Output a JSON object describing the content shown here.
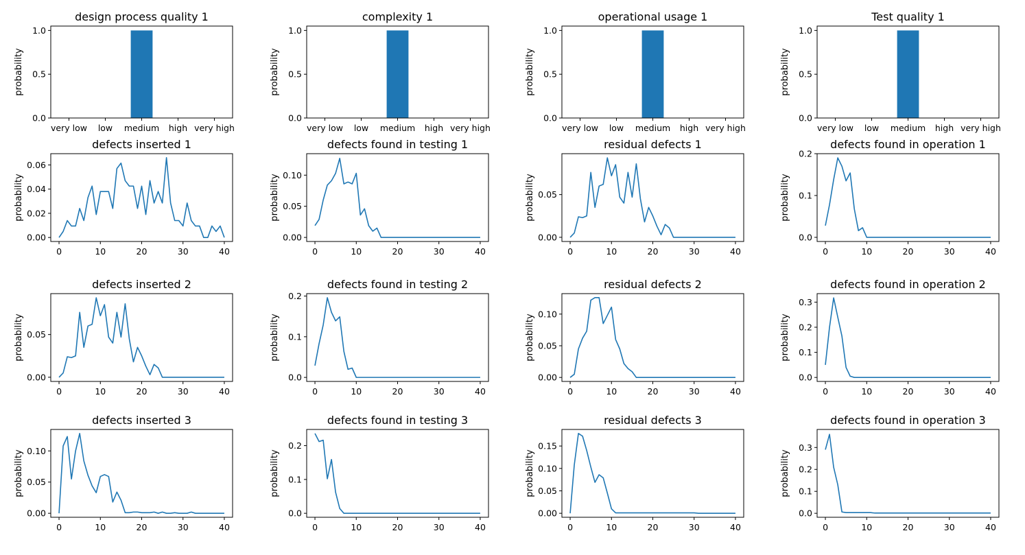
{
  "chart_data": [
    {
      "type": "bar",
      "title": "design process quality 1",
      "ylabel": "probability",
      "categories": [
        "very low",
        "low",
        "medium",
        "high",
        "very high"
      ],
      "values": [
        0,
        0,
        1,
        0,
        0
      ],
      "ylim": [
        0,
        1.05
      ],
      "yticks": [
        0.0,
        0.5,
        1.0
      ],
      "ytick_labels": [
        "0.0",
        "0.5",
        "1.0"
      ]
    },
    {
      "type": "bar",
      "title": "complexity 1",
      "ylabel": "probability",
      "categories": [
        "very low",
        "low",
        "medium",
        "high",
        "very high"
      ],
      "values": [
        0,
        0,
        1,
        0,
        0
      ],
      "ylim": [
        0,
        1.05
      ],
      "yticks": [
        0.0,
        0.5,
        1.0
      ],
      "ytick_labels": [
        "0.0",
        "0.5",
        "1.0"
      ]
    },
    {
      "type": "bar",
      "title": "operational usage 1",
      "ylabel": "probability",
      "categories": [
        "very low",
        "low",
        "medium",
        "high",
        "very high"
      ],
      "values": [
        0,
        0,
        1,
        0,
        0
      ],
      "ylim": [
        0,
        1.05
      ],
      "yticks": [
        0.0,
        0.5,
        1.0
      ],
      "ytick_labels": [
        "0.0",
        "0.5",
        "1.0"
      ]
    },
    {
      "type": "bar",
      "title": "Test quality 1",
      "ylabel": "probability",
      "categories": [
        "very low",
        "low",
        "medium",
        "high",
        "very high"
      ],
      "values": [
        0,
        0,
        1,
        0,
        0
      ],
      "ylim": [
        0,
        1.05
      ],
      "yticks": [
        0.0,
        0.5,
        1.0
      ],
      "ytick_labels": [
        "0.0",
        "0.5",
        "1.0"
      ]
    },
    {
      "type": "line",
      "title": "defects inserted 1",
      "ylabel": "probability",
      "x_range": [
        0,
        40
      ],
      "xticks": [
        0,
        10,
        20,
        30,
        40
      ],
      "ylim": [
        -0.0033,
        0.0693
      ],
      "yticks": [
        0,
        0.02,
        0.04,
        0.06
      ],
      "ytick_labels": [
        "0.00",
        "0.02",
        "0.04",
        "0.06"
      ],
      "values": [
        0,
        0.005,
        0.014,
        0.0095,
        0.0095,
        0.024,
        0.014,
        0.033,
        0.0425,
        0.019,
        0.038,
        0.038,
        0.038,
        0.024,
        0.057,
        0.0615,
        0.047,
        0.0425,
        0.0425,
        0.024,
        0.0425,
        0.019,
        0.047,
        0.0285,
        0.038,
        0.0285,
        0.066,
        0.0285,
        0.014,
        0.014,
        0.0095,
        0.0285,
        0.014,
        0.0095,
        0.0095,
        0,
        0,
        0.0095,
        0.005,
        0.0095,
        0
      ]
    },
    {
      "type": "line",
      "title": "defects found in testing 1",
      "ylabel": "probability",
      "x_range": [
        0,
        40
      ],
      "xticks": [
        0,
        10,
        20,
        30,
        40
      ],
      "ylim": [
        -0.0065,
        0.1345
      ],
      "yticks": [
        0,
        0.05,
        0.1
      ],
      "ytick_labels": [
        "0.00",
        "0.05",
        "0.10"
      ],
      "values": [
        0.019,
        0.029,
        0.06,
        0.084,
        0.091,
        0.103,
        0.127,
        0.086,
        0.089,
        0.086,
        0.103,
        0.036,
        0.046,
        0.019,
        0.01,
        0.015,
        0,
        0,
        0,
        0,
        0,
        0,
        0,
        0,
        0,
        0,
        0,
        0,
        0,
        0,
        0,
        0,
        0,
        0,
        0,
        0,
        0,
        0,
        0,
        0,
        0
      ]
    },
    {
      "type": "line",
      "title": "residual defects 1",
      "ylabel": "probability",
      "x_range": [
        0,
        40
      ],
      "xticks": [
        0,
        10,
        20,
        30,
        40
      ],
      "ylim": [
        -0.0049,
        0.0979
      ],
      "yticks": [
        0,
        0.05
      ],
      "ytick_labels": [
        "0.00",
        "0.05"
      ],
      "values": [
        0,
        0.005,
        0.024,
        0.023,
        0.025,
        0.076,
        0.035,
        0.06,
        0.062,
        0.093,
        0.072,
        0.085,
        0.047,
        0.04,
        0.076,
        0.047,
        0.086,
        0.045,
        0.018,
        0.035,
        0.025,
        0.013,
        0.003,
        0.015,
        0.011,
        0,
        0,
        0,
        0,
        0,
        0,
        0,
        0,
        0,
        0,
        0,
        0,
        0,
        0,
        0,
        0
      ]
    },
    {
      "type": "line",
      "title": "defects found in operation 1",
      "ylabel": "probability",
      "x_range": [
        0,
        40
      ],
      "xticks": [
        0,
        10,
        20,
        30,
        40
      ],
      "ylim": [
        -0.0099,
        0.2
      ],
      "yticks": [
        0,
        0.1,
        0.2
      ],
      "ytick_labels": [
        "0.0",
        "0.1",
        "0.2"
      ],
      "values": [
        0.028,
        0.078,
        0.138,
        0.19,
        0.17,
        0.135,
        0.154,
        0.068,
        0.016,
        0.023,
        0,
        0,
        0,
        0,
        0,
        0,
        0,
        0,
        0,
        0,
        0,
        0,
        0,
        0,
        0,
        0,
        0,
        0,
        0,
        0,
        0,
        0,
        0,
        0,
        0,
        0,
        0,
        0,
        0,
        0,
        0
      ]
    },
    {
      "type": "line",
      "title": "defects inserted 2",
      "ylabel": "probability",
      "x_range": [
        0,
        40
      ],
      "xticks": [
        0,
        10,
        20,
        30,
        40
      ],
      "ylim": [
        -0.0049,
        0.0979
      ],
      "yticks": [
        0,
        0.05
      ],
      "ytick_labels": [
        "0.00",
        "0.05"
      ],
      "values": [
        0,
        0.005,
        0.024,
        0.023,
        0.025,
        0.076,
        0.035,
        0.06,
        0.062,
        0.093,
        0.072,
        0.085,
        0.047,
        0.04,
        0.076,
        0.047,
        0.086,
        0.045,
        0.018,
        0.035,
        0.025,
        0.013,
        0.003,
        0.015,
        0.011,
        0,
        0,
        0,
        0,
        0,
        0,
        0,
        0,
        0,
        0,
        0,
        0,
        0,
        0,
        0,
        0
      ]
    },
    {
      "type": "line",
      "title": "defects found in testing 2",
      "ylabel": "probability",
      "x_range": [
        0,
        40
      ],
      "xticks": [
        0,
        10,
        20,
        30,
        40
      ],
      "ylim": [
        -0.0099,
        0.206
      ],
      "yticks": [
        0,
        0.1,
        0.2
      ],
      "ytick_labels": [
        "0.0",
        "0.1",
        "0.2"
      ],
      "values": [
        0.029,
        0.083,
        0.129,
        0.196,
        0.16,
        0.139,
        0.149,
        0.064,
        0.02,
        0.023,
        0,
        0,
        0,
        0,
        0,
        0,
        0,
        0,
        0,
        0,
        0,
        0,
        0,
        0,
        0,
        0,
        0,
        0,
        0,
        0,
        0,
        0,
        0,
        0,
        0,
        0,
        0,
        0,
        0,
        0,
        0
      ]
    },
    {
      "type": "line",
      "title": "residual defects 2",
      "ylabel": "probability",
      "x_range": [
        0,
        40
      ],
      "xticks": [
        0,
        10,
        20,
        30,
        40
      ],
      "ylim": [
        -0.0063,
        0.1323
      ],
      "yticks": [
        0,
        0.05,
        0.1
      ],
      "ytick_labels": [
        "0.00",
        "0.05",
        "0.10"
      ],
      "values": [
        0,
        0.005,
        0.045,
        0.062,
        0.073,
        0.122,
        0.126,
        0.126,
        0.085,
        0.098,
        0.111,
        0.06,
        0.045,
        0.022,
        0.014,
        0.009,
        0,
        0,
        0,
        0,
        0,
        0,
        0,
        0,
        0,
        0,
        0,
        0,
        0,
        0,
        0,
        0,
        0,
        0,
        0,
        0,
        0,
        0,
        0,
        0,
        0
      ]
    },
    {
      "type": "line",
      "title": "defects found in operation 2",
      "ylabel": "probability",
      "x_range": [
        0,
        40
      ],
      "xticks": [
        0,
        10,
        20,
        30,
        40
      ],
      "ylim": [
        -0.0159,
        0.3339
      ],
      "yticks": [
        0,
        0.1,
        0.2,
        0.3
      ],
      "ytick_labels": [
        "0.0",
        "0.1",
        "0.2",
        "0.3"
      ],
      "values": [
        0.05,
        0.2,
        0.317,
        0.24,
        0.165,
        0.04,
        0.005,
        0,
        0,
        0,
        0,
        0,
        0,
        0,
        0,
        0,
        0,
        0,
        0,
        0,
        0,
        0,
        0,
        0,
        0,
        0,
        0,
        0,
        0,
        0,
        0,
        0,
        0,
        0,
        0,
        0,
        0,
        0,
        0,
        0,
        0
      ]
    },
    {
      "type": "line",
      "title": "defects inserted 3",
      "ylabel": "probability",
      "x_range": [
        0,
        40
      ],
      "xticks": [
        0,
        10,
        20,
        30,
        40
      ],
      "ylim": [
        -0.0064,
        0.1344
      ],
      "yticks": [
        0,
        0.05,
        0.1
      ],
      "ytick_labels": [
        "0.00",
        "0.05",
        "0.10"
      ],
      "values": [
        0,
        0.108,
        0.123,
        0.055,
        0.1,
        0.128,
        0.084,
        0.061,
        0.044,
        0.033,
        0.059,
        0.062,
        0.059,
        0.018,
        0.034,
        0.021,
        0.001,
        0.001,
        0.002,
        0.002,
        0.001,
        0.001,
        0.001,
        0.002,
        0.0,
        0.002,
        0,
        0,
        0.001,
        0,
        0,
        0,
        0.002,
        0,
        0,
        0,
        0,
        0,
        0,
        0,
        0
      ]
    },
    {
      "type": "line",
      "title": "defects found in testing 3",
      "ylabel": "probability",
      "x_range": [
        0,
        40
      ],
      "xticks": [
        0,
        10,
        20,
        30,
        40
      ],
      "ylim": [
        -0.0118,
        0.2478
      ],
      "yticks": [
        0,
        0.1,
        0.2
      ],
      "ytick_labels": [
        "0.0",
        "0.1",
        "0.2"
      ],
      "values": [
        0.236,
        0.212,
        0.216,
        0.102,
        0.159,
        0.062,
        0.014,
        0,
        0,
        0,
        0,
        0,
        0,
        0,
        0,
        0,
        0,
        0,
        0,
        0,
        0,
        0,
        0,
        0,
        0,
        0,
        0,
        0,
        0,
        0,
        0,
        0,
        0,
        0,
        0,
        0,
        0,
        0,
        0,
        0,
        0
      ]
    },
    {
      "type": "line",
      "title": "residual defects 3",
      "ylabel": "probability",
      "x_range": [
        0,
        40
      ],
      "xticks": [
        0,
        10,
        20,
        30,
        40
      ],
      "ylim": [
        -0.0089,
        0.1869
      ],
      "yticks": [
        0,
        0.05,
        0.1,
        0.15
      ],
      "ytick_labels": [
        "0.00",
        "0.05",
        "0.10",
        "0.15"
      ],
      "values": [
        0,
        0.108,
        0.178,
        0.172,
        0.14,
        0.103,
        0.069,
        0.086,
        0.079,
        0.045,
        0.01,
        0.001,
        0.001,
        0.001,
        0.001,
        0.001,
        0.001,
        0.001,
        0.001,
        0.001,
        0.001,
        0.001,
        0.001,
        0.001,
        0.001,
        0.001,
        0.001,
        0.001,
        0.001,
        0.001,
        0.001,
        0.0,
        0,
        0,
        0,
        0,
        0,
        0,
        0,
        0,
        0
      ]
    },
    {
      "type": "line",
      "title": "defects found in operation 3",
      "ylabel": "probability",
      "x_range": [
        0,
        40
      ],
      "xticks": [
        0,
        10,
        20,
        30,
        40
      ],
      "ylim": [
        -0.0182,
        0.3822
      ],
      "yticks": [
        0,
        0.1,
        0.2,
        0.3
      ],
      "ytick_labels": [
        "0.0",
        "0.1",
        "0.2",
        "0.3"
      ],
      "values": [
        0.29,
        0.36,
        0.21,
        0.13,
        0.006,
        0.003,
        0.003,
        0.003,
        0.003,
        0.003,
        0.003,
        0.003,
        0.001,
        0.001,
        0.001,
        0.001,
        0.001,
        0.001,
        0.001,
        0.001,
        0.001,
        0.001,
        0.001,
        0.001,
        0.001,
        0.001,
        0.001,
        0.001,
        0.001,
        0.001,
        0.001,
        0.001,
        0.001,
        0.001,
        0.001,
        0.001,
        0.001,
        0.001,
        0.001,
        0.001,
        0.001
      ]
    }
  ],
  "colors": {
    "series": "#1f77b4",
    "axes": "#000000"
  }
}
